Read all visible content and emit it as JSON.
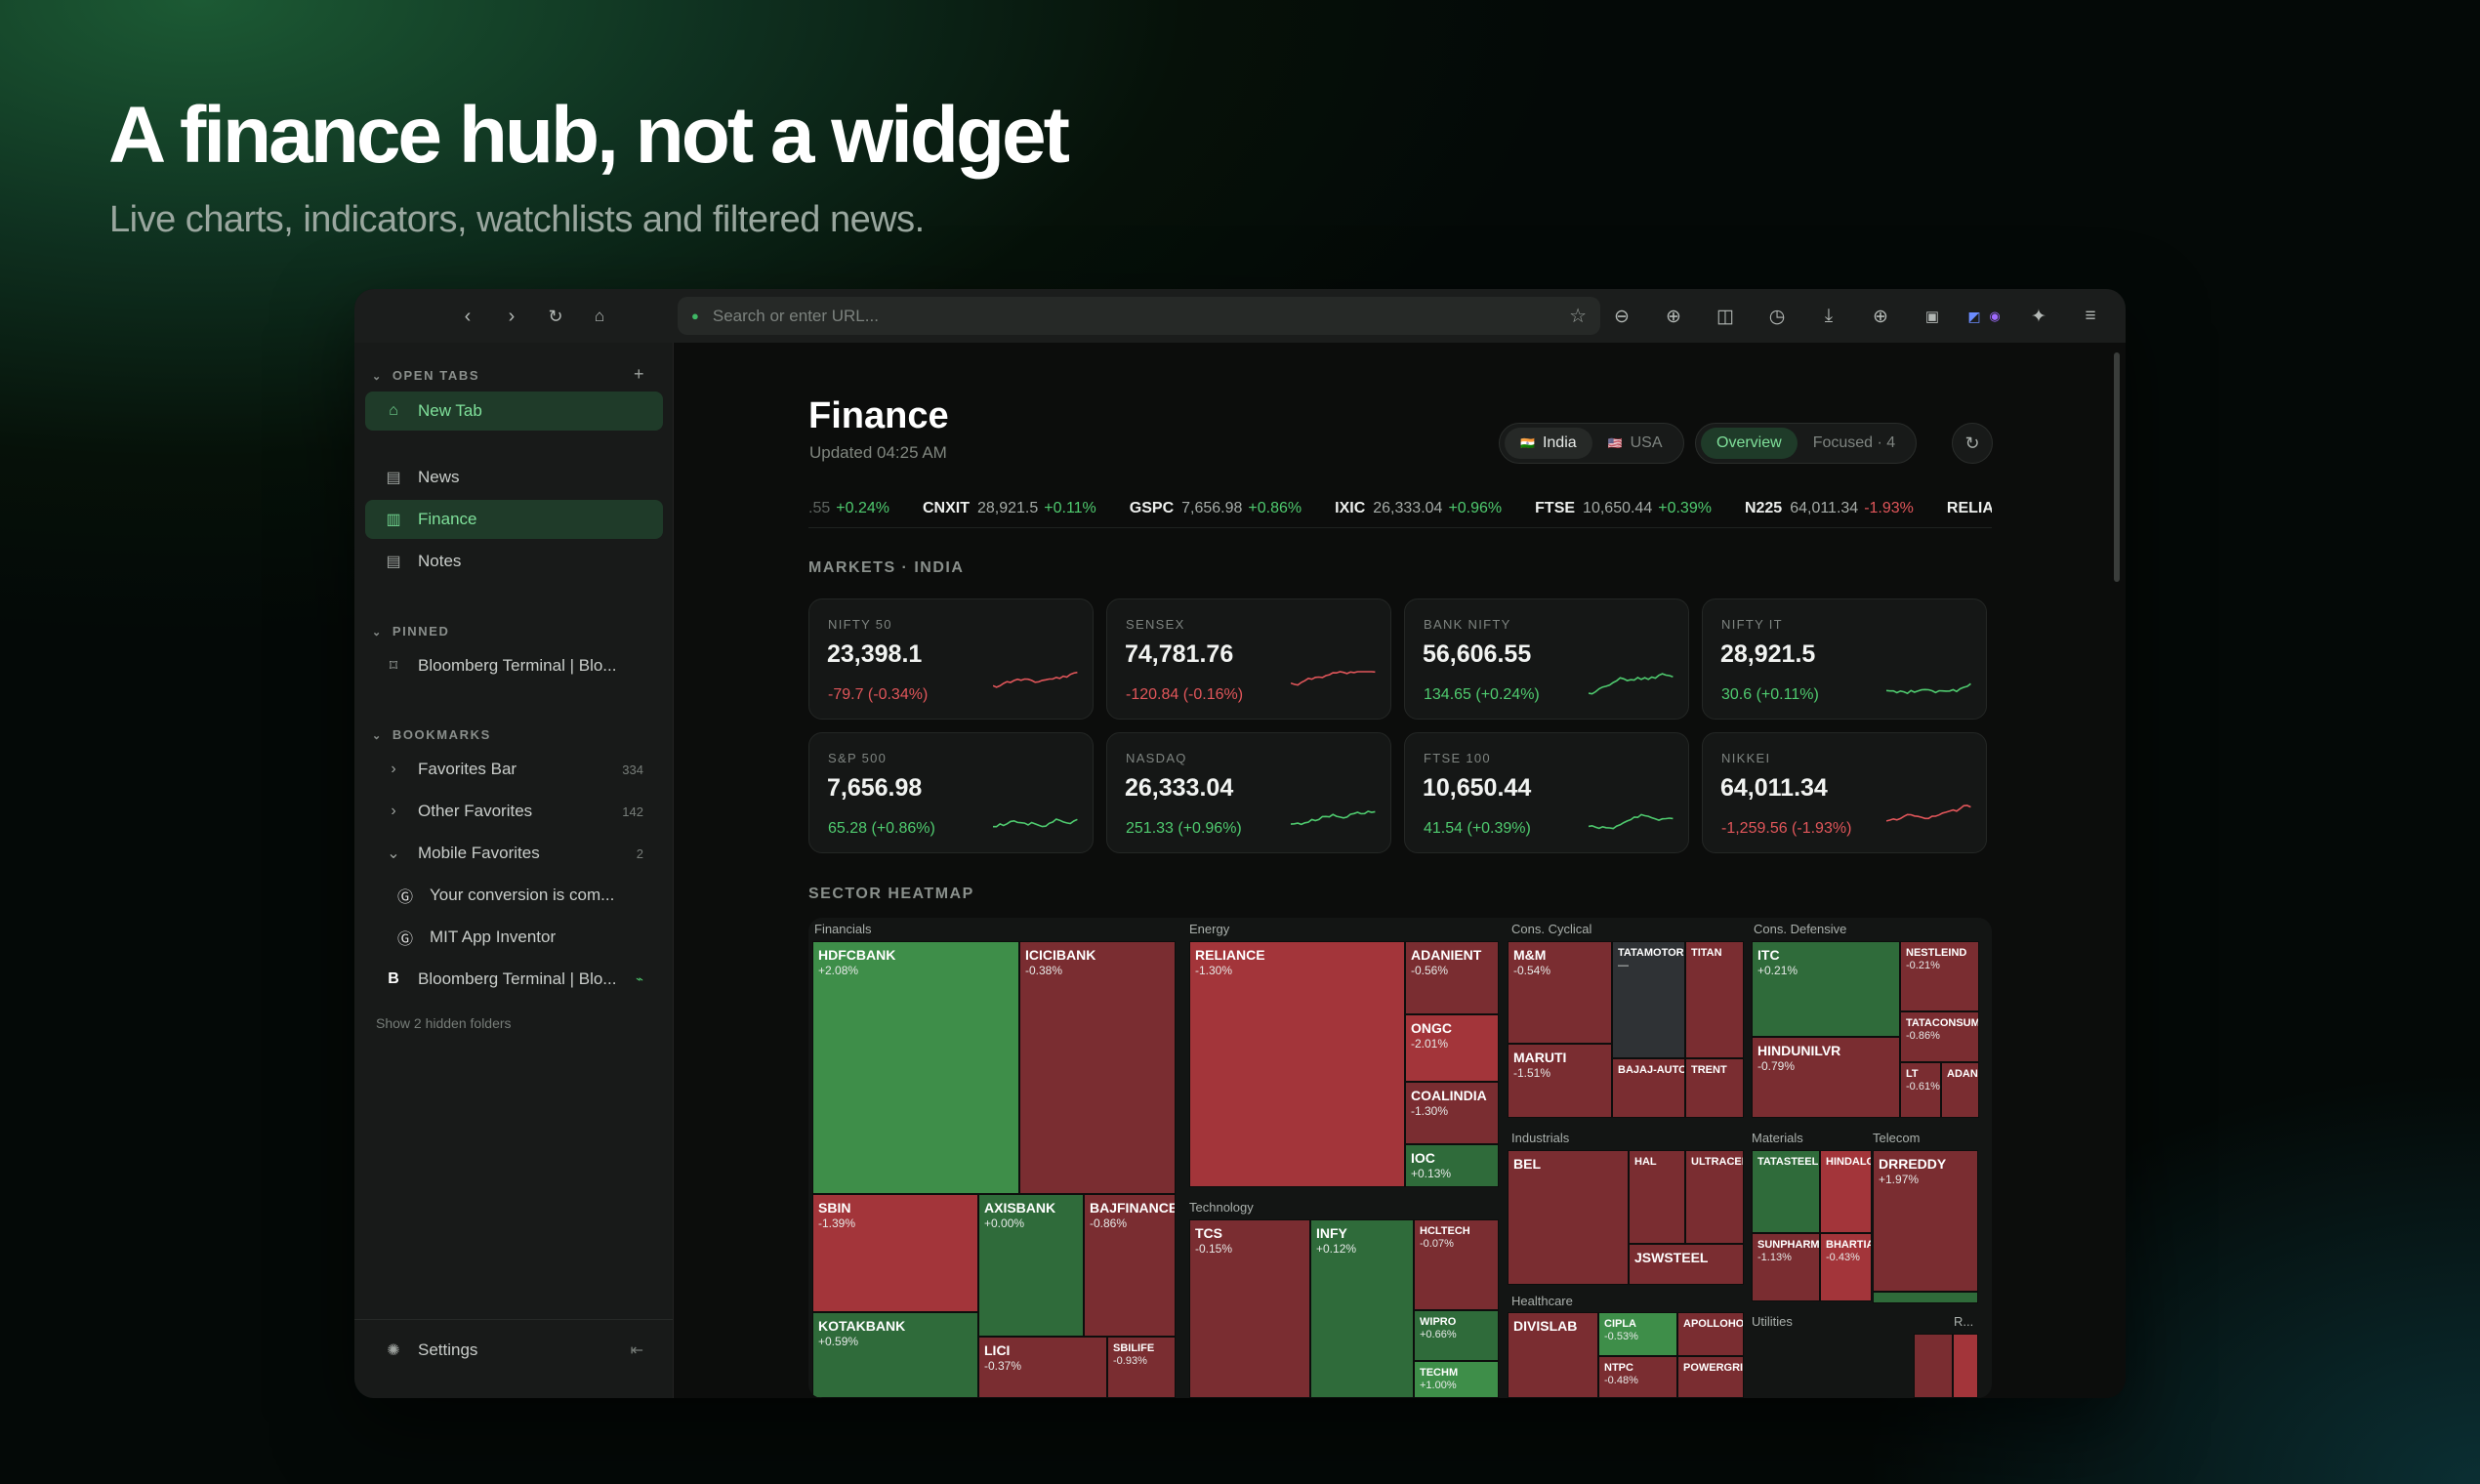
{
  "hero": {
    "title": "A finance hub, not a widget",
    "subtitle": "Live charts, indicators, watchlists and filtered news."
  },
  "toolbar": {
    "url_placeholder": "Search or enter URL...",
    "icons": [
      "back-icon",
      "forward-icon",
      "reload-icon",
      "home-icon",
      "zoom-out-icon",
      "zoom-in-icon",
      "split-view-icon",
      "history-icon",
      "download-icon",
      "add-icon",
      "tab-icon",
      "translate-icon",
      "extensions-icon",
      "menu-icon"
    ]
  },
  "sidebar": {
    "open_tabs_label": "OPEN TABS",
    "open_tabs": [
      {
        "label": "New Tab",
        "icon": "home-icon",
        "active": true
      },
      {
        "label": "News",
        "icon": "news-icon"
      },
      {
        "label": "Finance",
        "icon": "chart-icon",
        "active": true
      },
      {
        "label": "Notes",
        "icon": "notes-icon"
      }
    ],
    "pinned_label": "PINNED",
    "pinned": [
      {
        "label": "Bloomberg Terminal | Blo...",
        "icon": "bookmark-icon"
      }
    ],
    "bookmarks_label": "BOOKMARKS",
    "bookmarks": [
      {
        "label": "Favorites Bar",
        "count": "334"
      },
      {
        "label": "Other Favorites",
        "count": "142"
      },
      {
        "label": "Mobile Favorites",
        "count": "2"
      }
    ],
    "mobile_items": [
      {
        "label": "Your conversion is com..."
      },
      {
        "label": "MIT App Inventor"
      }
    ],
    "bloomberg_item": {
      "label": "Bloomberg Terminal | Blo...",
      "letter": "B"
    },
    "hidden_folders": "Show 2 hidden folders",
    "settings": "Settings"
  },
  "finance": {
    "title": "Finance",
    "updated": "Updated 04:25 AM",
    "regions": [
      "India",
      "USA"
    ],
    "region_flags": [
      "🇮🇳",
      "🇺🇸"
    ],
    "views": [
      "Overview",
      "Focused · 4"
    ],
    "ticker": [
      {
        "sym": "",
        "val": ".55",
        "chg": "+0.24%",
        "dir": "up"
      },
      {
        "sym": "CNXIT",
        "val": "28,921.5",
        "chg": "+0.11%",
        "dir": "up"
      },
      {
        "sym": "GSPC",
        "val": "7,656.98",
        "chg": "+0.86%",
        "dir": "up"
      },
      {
        "sym": "IXIC",
        "val": "26,333.04",
        "chg": "+0.96%",
        "dir": "up"
      },
      {
        "sym": "FTSE",
        "val": "10,650.44",
        "chg": "+0.39%",
        "dir": "up"
      },
      {
        "sym": "N225",
        "val": "64,011.34",
        "chg": "-1.93%",
        "dir": "dn"
      },
      {
        "sym": "RELIANCE",
        "val": "",
        "chg": "",
        "dir": "up"
      }
    ],
    "markets_label": "MARKETS · INDIA",
    "cards": [
      {
        "name": "NIFTY 50",
        "value": "23,398.1",
        "change": "-79.7 (-0.34%)",
        "dir": "dn"
      },
      {
        "name": "SENSEX",
        "value": "74,781.76",
        "change": "-120.84 (-0.16%)",
        "dir": "dn"
      },
      {
        "name": "BANK NIFTY",
        "value": "56,606.55",
        "change": "134.65 (+0.24%)",
        "dir": "up"
      },
      {
        "name": "NIFTY IT",
        "value": "28,921.5",
        "change": "30.6 (+0.11%)",
        "dir": "up"
      },
      {
        "name": "S&P 500",
        "value": "7,656.98",
        "change": "65.28 (+0.86%)",
        "dir": "up"
      },
      {
        "name": "NASDAQ",
        "value": "26,333.04",
        "change": "251.33 (+0.96%)",
        "dir": "up"
      },
      {
        "name": "FTSE 100",
        "value": "10,650.44",
        "change": "41.54 (+0.39%)",
        "dir": "up"
      },
      {
        "name": "NIKKEI",
        "value": "64,011.34",
        "change": "-1,259.56 (-1.93%)",
        "dir": "dn"
      }
    ],
    "heatmap_label": "SECTOR HEATMAP",
    "sectors": [
      "Financials",
      "Energy",
      "Cons. Cyclical",
      "Cons. Defensive",
      "Technology",
      "Industrials",
      "Materials",
      "Telecom",
      "Healthcare",
      "Utilities",
      "R..."
    ],
    "tiles": [
      {
        "t": "HDFCBANK",
        "p": "+2.08%"
      },
      {
        "t": "ICICIBANK",
        "p": "-0.38%"
      },
      {
        "t": "SBIN",
        "p": "-1.39%"
      },
      {
        "t": "AXISBANK",
        "p": "+0.00%"
      },
      {
        "t": "BAJFINANCE",
        "p": "-0.86%"
      },
      {
        "t": "KOTAKBANK",
        "p": "+0.59%"
      },
      {
        "t": "LICI",
        "p": "-0.37%"
      },
      {
        "t": "SBILIFE",
        "p": "-0.93%"
      },
      {
        "t": "RELIANCE",
        "p": "-1.30%"
      },
      {
        "t": "ADANIENT",
        "p": "-0.56%"
      },
      {
        "t": "ONGC",
        "p": "-2.01%"
      },
      {
        "t": "COALINDIA",
        "p": "-1.30%"
      },
      {
        "t": "IOC",
        "p": "+0.13%"
      },
      {
        "t": "TCS",
        "p": "-0.15%"
      },
      {
        "t": "INFY",
        "p": "+0.12%"
      },
      {
        "t": "HCLTECH",
        "p": "-0.07%"
      },
      {
        "t": "WIPRO",
        "p": "+0.66%"
      },
      {
        "t": "TECHM",
        "p": "+1.00%"
      },
      {
        "t": "M&M",
        "p": "-0.54%"
      },
      {
        "t": "TATAMOTORS",
        "p": "—"
      },
      {
        "t": "TITAN",
        "p": ""
      },
      {
        "t": "MARUTI",
        "p": "-1.51%"
      },
      {
        "t": "BAJAJ-AUTO",
        "p": ""
      },
      {
        "t": "TRENT",
        "p": ""
      },
      {
        "t": "ITC",
        "p": "+0.21%"
      },
      {
        "t": "NESTLEIND",
        "p": "-0.21%"
      },
      {
        "t": "TATACONSUM",
        "p": "-0.86%"
      },
      {
        "t": "HINDUNILVR",
        "p": "-0.79%"
      },
      {
        "t": "LT",
        "p": "-0.61%"
      },
      {
        "t": "ADANIPORTS",
        "p": ""
      },
      {
        "t": "BEL",
        "p": ""
      },
      {
        "t": "HAL",
        "p": ""
      },
      {
        "t": "ULTRACEMCO",
        "p": ""
      },
      {
        "t": "JSWSTEEL",
        "p": ""
      },
      {
        "t": "TATASTEEL",
        "p": ""
      },
      {
        "t": "HINDALCO",
        "p": ""
      },
      {
        "t": "BHARTIARTL",
        "p": "-0.43%"
      },
      {
        "t": "SUNPHARMA",
        "p": "-1.13%"
      },
      {
        "t": "DRREDDY",
        "p": "+1.97%"
      },
      {
        "t": "DIVISLAB",
        "p": ""
      },
      {
        "t": "CIPLA",
        "p": "-0.53%"
      },
      {
        "t": "APOLLOHOSP",
        "p": ""
      },
      {
        "t": "NTPC",
        "p": "-0.48%"
      },
      {
        "t": "POWERGRID",
        "p": ""
      }
    ]
  }
}
